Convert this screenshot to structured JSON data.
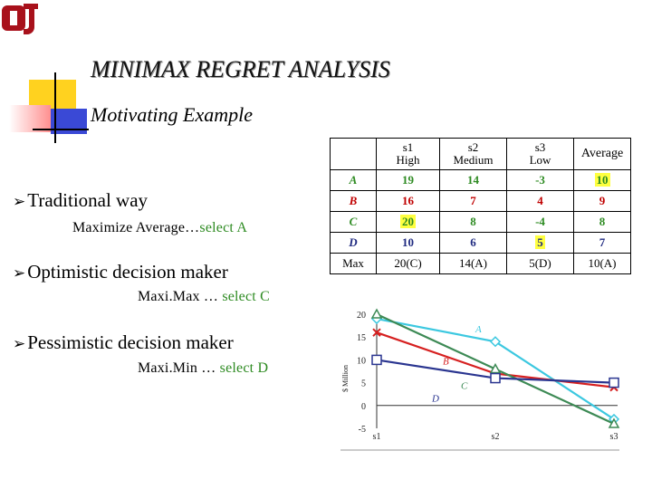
{
  "title": "MINIMAX REGRET ANALYSIS",
  "subtitle": "Motivating Example",
  "bullets": [
    {
      "heading": "Traditional way",
      "sub_prefix": "Maximize Average…",
      "sub_highlight": "select A"
    },
    {
      "heading": "Optimistic decision maker",
      "sub_prefix": "Maxi.Max … ",
      "sub_highlight": "select C"
    },
    {
      "heading": "Pessimistic decision maker",
      "sub_prefix": "Maxi.Min … ",
      "sub_highlight": "select D"
    }
  ],
  "table": {
    "headers": [
      {
        "line1": "s1",
        "line2": "High"
      },
      {
        "line1": "s2",
        "line2": "Medium"
      },
      {
        "line1": "s3",
        "line2": "Low"
      },
      {
        "line1": "Average",
        "line2": ""
      }
    ],
    "rows": [
      {
        "label": "A",
        "color": "#2e8b22",
        "cells": [
          "19",
          "14",
          "-3",
          "10"
        ],
        "highlight": [
          false,
          false,
          false,
          true
        ]
      },
      {
        "label": "B",
        "color": "#c00000",
        "cells": [
          "16",
          "7",
          "4",
          "9"
        ],
        "highlight": [
          false,
          false,
          false,
          false
        ]
      },
      {
        "label": "C",
        "color": "#2e8b22",
        "cells": [
          "20",
          "8",
          "-4",
          "8"
        ],
        "highlight": [
          true,
          false,
          false,
          false
        ]
      },
      {
        "label": "D",
        "color": "#1f2a80",
        "cells": [
          "10",
          "6",
          "5",
          "7"
        ],
        "highlight": [
          false,
          false,
          true,
          false
        ]
      }
    ],
    "max_row": {
      "label": "Max",
      "cells": [
        "20(C)",
        "14(A)",
        "5(D)",
        "10(A)"
      ]
    }
  },
  "colors": {
    "green": "#2e8b22",
    "highlight": "#ffff40"
  },
  "chart_data": {
    "type": "line",
    "x": [
      "s1",
      "s2",
      "s3"
    ],
    "ylabel": "$ Million",
    "ylim": [
      -5,
      20
    ],
    "yticks": [
      "20",
      "15",
      "10",
      "5",
      "0",
      "-5"
    ],
    "series": [
      {
        "name": "A",
        "values": [
          19,
          14,
          -3
        ],
        "color": "#3cc8e0",
        "marker": "diamond"
      },
      {
        "name": "B",
        "values": [
          16,
          7,
          4
        ],
        "color": "#d62020",
        "marker": "x"
      },
      {
        "name": "C",
        "values": [
          20,
          8,
          -4
        ],
        "color": "#3d8a55",
        "marker": "triangle"
      },
      {
        "name": "D",
        "values": [
          10,
          6,
          5
        ],
        "color": "#2a3590",
        "marker": "square"
      }
    ]
  }
}
